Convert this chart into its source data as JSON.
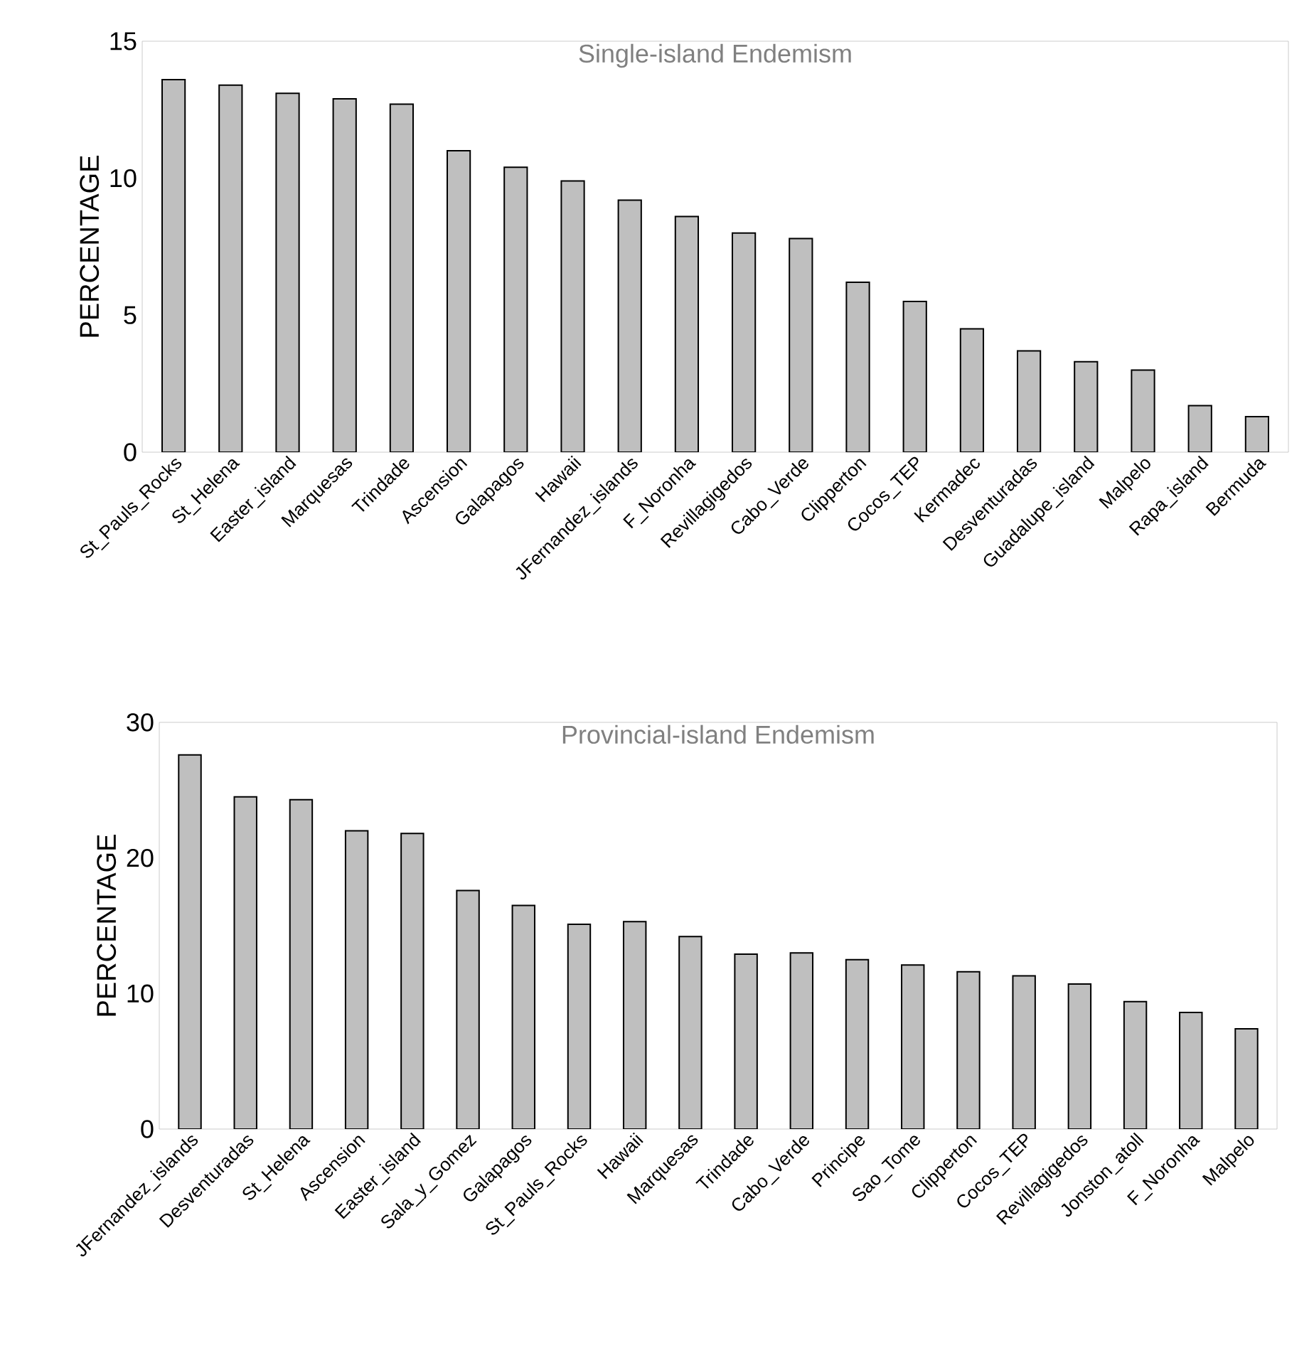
{
  "chart_data": [
    {
      "type": "bar",
      "title": "Single-island Endemism",
      "ylabel": "PERCENTAGE",
      "categories": [
        "St_Pauls_Rocks",
        "St_Helena",
        "Easter_island",
        "Marquesas",
        "Trindade",
        "Ascension",
        "Galapagos",
        "Hawaii",
        "JFernandez_islands",
        "F_Noronha",
        "Revillagigedos",
        "Cabo_Verde",
        "Clipperton",
        "Cocos_TEP",
        "Kermadec",
        "Desventuradas",
        "Guadalupe_island",
        "Malpelo",
        "Rapa_island",
        "Bermuda"
      ],
      "values": [
        13.6,
        13.4,
        13.1,
        12.9,
        12.7,
        11.0,
        10.4,
        9.9,
        9.2,
        8.6,
        8.0,
        7.8,
        6.2,
        5.5,
        4.5,
        3.7,
        3.3,
        3.0,
        1.7,
        1.3
      ],
      "color": "#bfbfbf",
      "ylim": [
        0,
        15
      ],
      "yticks": [
        0,
        5,
        10,
        15
      ]
    },
    {
      "type": "bar",
      "title": "Provincial-island Endemism",
      "ylabel": "PERCENTAGE",
      "categories": [
        "JFernandez_islands",
        "Desventuradas",
        "St_Helena",
        "Ascension",
        "Easter_island",
        "Sala_y_Gomez",
        "Galapagos",
        "St_Pauls_Rocks",
        "Hawaii",
        "Marquesas",
        "Trindade",
        "Cabo_Verde",
        "Principe",
        "Sao_Tome",
        "Clipperton",
        "Cocos_TEP",
        "Revillagigedos",
        "Jonston_atoll",
        "F_Noronha",
        "Malpelo"
      ],
      "values": [
        27.6,
        24.5,
        24.3,
        22.0,
        21.8,
        17.6,
        16.5,
        15.1,
        15.3,
        14.2,
        12.9,
        13.0,
        12.5,
        12.1,
        11.6,
        11.3,
        10.7,
        9.4,
        8.6,
        7.4
      ],
      "color": "#bfbfbf",
      "ylim": [
        0,
        30
      ],
      "yticks": [
        0,
        10,
        20,
        30
      ]
    }
  ]
}
